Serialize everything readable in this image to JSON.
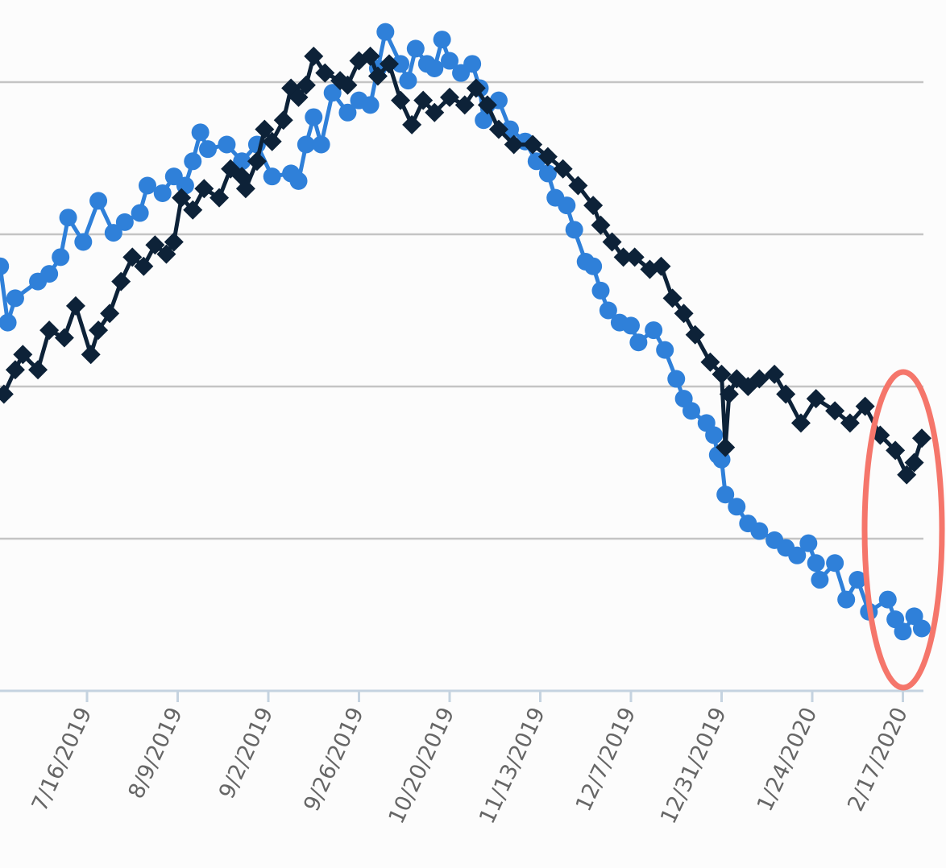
{
  "chart_data": {
    "type": "line",
    "title": "",
    "xlabel": "",
    "ylabel": "",
    "x_unit": "days from 7/16/2019",
    "x_origin": "7/16/2019",
    "xlim": [
      -23,
      221
    ],
    "ylim": [
      0,
      4.54
    ],
    "y_gridlines": [
      1,
      2,
      3,
      4
    ],
    "grid": true,
    "legend": "none",
    "x_ticks": [
      {
        "day": 0,
        "label": "7/16/2019"
      },
      {
        "day": 24,
        "label": "8/9/2019"
      },
      {
        "day": 48,
        "label": "9/2/2019"
      },
      {
        "day": 72,
        "label": "9/26/2019"
      },
      {
        "day": 96,
        "label": "10/20/2019"
      },
      {
        "day": 120,
        "label": "11/13/2019"
      },
      {
        "day": 144,
        "label": "12/7/2019"
      },
      {
        "day": 168,
        "label": "12/31/2019"
      },
      {
        "day": 192,
        "label": "1/24/2020"
      },
      {
        "day": 216,
        "label": "2/17/2020"
      }
    ],
    "series": [
      {
        "name": "series-blue",
        "color": "#2f80d9",
        "marker": "circle",
        "points": [
          [
            -23,
            2.79
          ],
          [
            -21,
            2.42
          ],
          [
            -19,
            2.58
          ],
          [
            -13,
            2.69
          ],
          [
            -10,
            2.74
          ],
          [
            -7,
            2.85
          ],
          [
            -5,
            3.11
          ],
          [
            -1,
            2.95
          ],
          [
            3,
            3.22
          ],
          [
            7,
            3.01
          ],
          [
            10,
            3.08
          ],
          [
            14,
            3.14
          ],
          [
            16,
            3.32
          ],
          [
            20,
            3.27
          ],
          [
            23,
            3.38
          ],
          [
            26,
            3.32
          ],
          [
            28,
            3.48
          ],
          [
            30,
            3.67
          ],
          [
            32,
            3.56
          ],
          [
            37,
            3.59
          ],
          [
            41,
            3.48
          ],
          [
            45,
            3.59
          ],
          [
            49,
            3.38
          ],
          [
            54,
            3.4
          ],
          [
            56,
            3.35
          ],
          [
            58,
            3.59
          ],
          [
            60,
            3.77
          ],
          [
            62,
            3.59
          ],
          [
            65,
            3.93
          ],
          [
            69,
            3.8
          ],
          [
            72,
            3.88
          ],
          [
            75,
            3.85
          ],
          [
            77,
            4.09
          ],
          [
            79,
            4.33
          ],
          [
            83,
            4.12
          ],
          [
            85,
            4.01
          ],
          [
            87,
            4.22
          ],
          [
            90,
            4.12
          ],
          [
            92,
            4.09
          ],
          [
            94,
            4.28
          ],
          [
            96,
            4.14
          ],
          [
            99,
            4.06
          ],
          [
            102,
            4.12
          ],
          [
            104,
            3.96
          ],
          [
            105,
            3.75
          ],
          [
            109,
            3.88
          ],
          [
            112,
            3.69
          ],
          [
            116,
            3.61
          ],
          [
            119,
            3.48
          ],
          [
            122,
            3.4
          ],
          [
            124,
            3.24
          ],
          [
            127,
            3.19
          ],
          [
            129,
            3.03
          ],
          [
            132,
            2.82
          ],
          [
            134,
            2.79
          ],
          [
            136,
            2.63
          ],
          [
            138,
            2.5
          ],
          [
            141,
            2.42
          ],
          [
            144,
            2.4
          ],
          [
            146,
            2.29
          ],
          [
            150,
            2.37
          ],
          [
            153,
            2.24
          ],
          [
            156,
            2.05
          ],
          [
            158,
            1.92
          ],
          [
            160,
            1.84
          ],
          [
            164,
            1.76
          ],
          [
            166,
            1.68
          ],
          [
            167,
            1.55
          ],
          [
            168,
            1.52
          ],
          [
            169,
            1.29
          ],
          [
            172,
            1.21
          ],
          [
            175,
            1.1
          ],
          [
            178,
            1.05
          ],
          [
            182,
            0.99
          ],
          [
            185,
            0.94
          ],
          [
            188,
            0.89
          ],
          [
            191,
            0.97
          ],
          [
            193,
            0.84
          ],
          [
            194,
            0.73
          ],
          [
            198,
            0.84
          ],
          [
            201,
            0.6
          ],
          [
            204,
            0.73
          ],
          [
            207,
            0.52
          ],
          [
            212,
            0.6
          ],
          [
            214,
            0.47
          ],
          [
            216,
            0.39
          ],
          [
            219,
            0.49
          ],
          [
            221,
            0.41
          ]
        ]
      },
      {
        "name": "series-navy",
        "color": "#0d2238",
        "marker": "diamond",
        "points": [
          [
            -22,
            1.95
          ],
          [
            -19,
            2.11
          ],
          [
            -17,
            2.21
          ],
          [
            -13,
            2.11
          ],
          [
            -10,
            2.37
          ],
          [
            -6,
            2.32
          ],
          [
            -3,
            2.53
          ],
          [
            1,
            2.21
          ],
          [
            3,
            2.37
          ],
          [
            6,
            2.48
          ],
          [
            9,
            2.69
          ],
          [
            12,
            2.85
          ],
          [
            15,
            2.79
          ],
          [
            18,
            2.93
          ],
          [
            21,
            2.87
          ],
          [
            23,
            2.95
          ],
          [
            25,
            3.24
          ],
          [
            28,
            3.16
          ],
          [
            31,
            3.3
          ],
          [
            35,
            3.24
          ],
          [
            38,
            3.43
          ],
          [
            41,
            3.38
          ],
          [
            42,
            3.3
          ],
          [
            45,
            3.48
          ],
          [
            47,
            3.69
          ],
          [
            49,
            3.61
          ],
          [
            52,
            3.75
          ],
          [
            54,
            3.96
          ],
          [
            56,
            3.9
          ],
          [
            58,
            3.98
          ],
          [
            60,
            4.17
          ],
          [
            63,
            4.06
          ],
          [
            67,
            4.01
          ],
          [
            69,
            3.98
          ],
          [
            72,
            4.14
          ],
          [
            75,
            4.17
          ],
          [
            77,
            4.04
          ],
          [
            80,
            4.12
          ],
          [
            83,
            3.88
          ],
          [
            86,
            3.72
          ],
          [
            89,
            3.88
          ],
          [
            92,
            3.8
          ],
          [
            96,
            3.9
          ],
          [
            100,
            3.85
          ],
          [
            103,
            3.96
          ],
          [
            106,
            3.85
          ],
          [
            109,
            3.69
          ],
          [
            113,
            3.59
          ],
          [
            118,
            3.59
          ],
          [
            122,
            3.51
          ],
          [
            126,
            3.43
          ],
          [
            130,
            3.32
          ],
          [
            134,
            3.19
          ],
          [
            136,
            3.06
          ],
          [
            139,
            2.95
          ],
          [
            142,
            2.85
          ],
          [
            145,
            2.85
          ],
          [
            149,
            2.77
          ],
          [
            152,
            2.79
          ],
          [
            155,
            2.58
          ],
          [
            158,
            2.48
          ],
          [
            161,
            2.34
          ],
          [
            165,
            2.16
          ],
          [
            168,
            2.08
          ],
          [
            169,
            1.6
          ],
          [
            170,
            1.95
          ],
          [
            172,
            2.05
          ],
          [
            175,
            2.0
          ],
          [
            178,
            2.05
          ],
          [
            182,
            2.08
          ],
          [
            185,
            1.95
          ],
          [
            189,
            1.76
          ],
          [
            193,
            1.92
          ],
          [
            198,
            1.84
          ],
          [
            202,
            1.76
          ],
          [
            206,
            1.87
          ],
          [
            210,
            1.68
          ],
          [
            214,
            1.58
          ],
          [
            217,
            1.42
          ],
          [
            219,
            1.5
          ],
          [
            221,
            1.66
          ]
        ]
      }
    ],
    "annotation": {
      "shape": "ellipse",
      "color": "#f5766b",
      "target_day": 216,
      "target_value_range": [
        0,
        2.1
      ]
    }
  }
}
